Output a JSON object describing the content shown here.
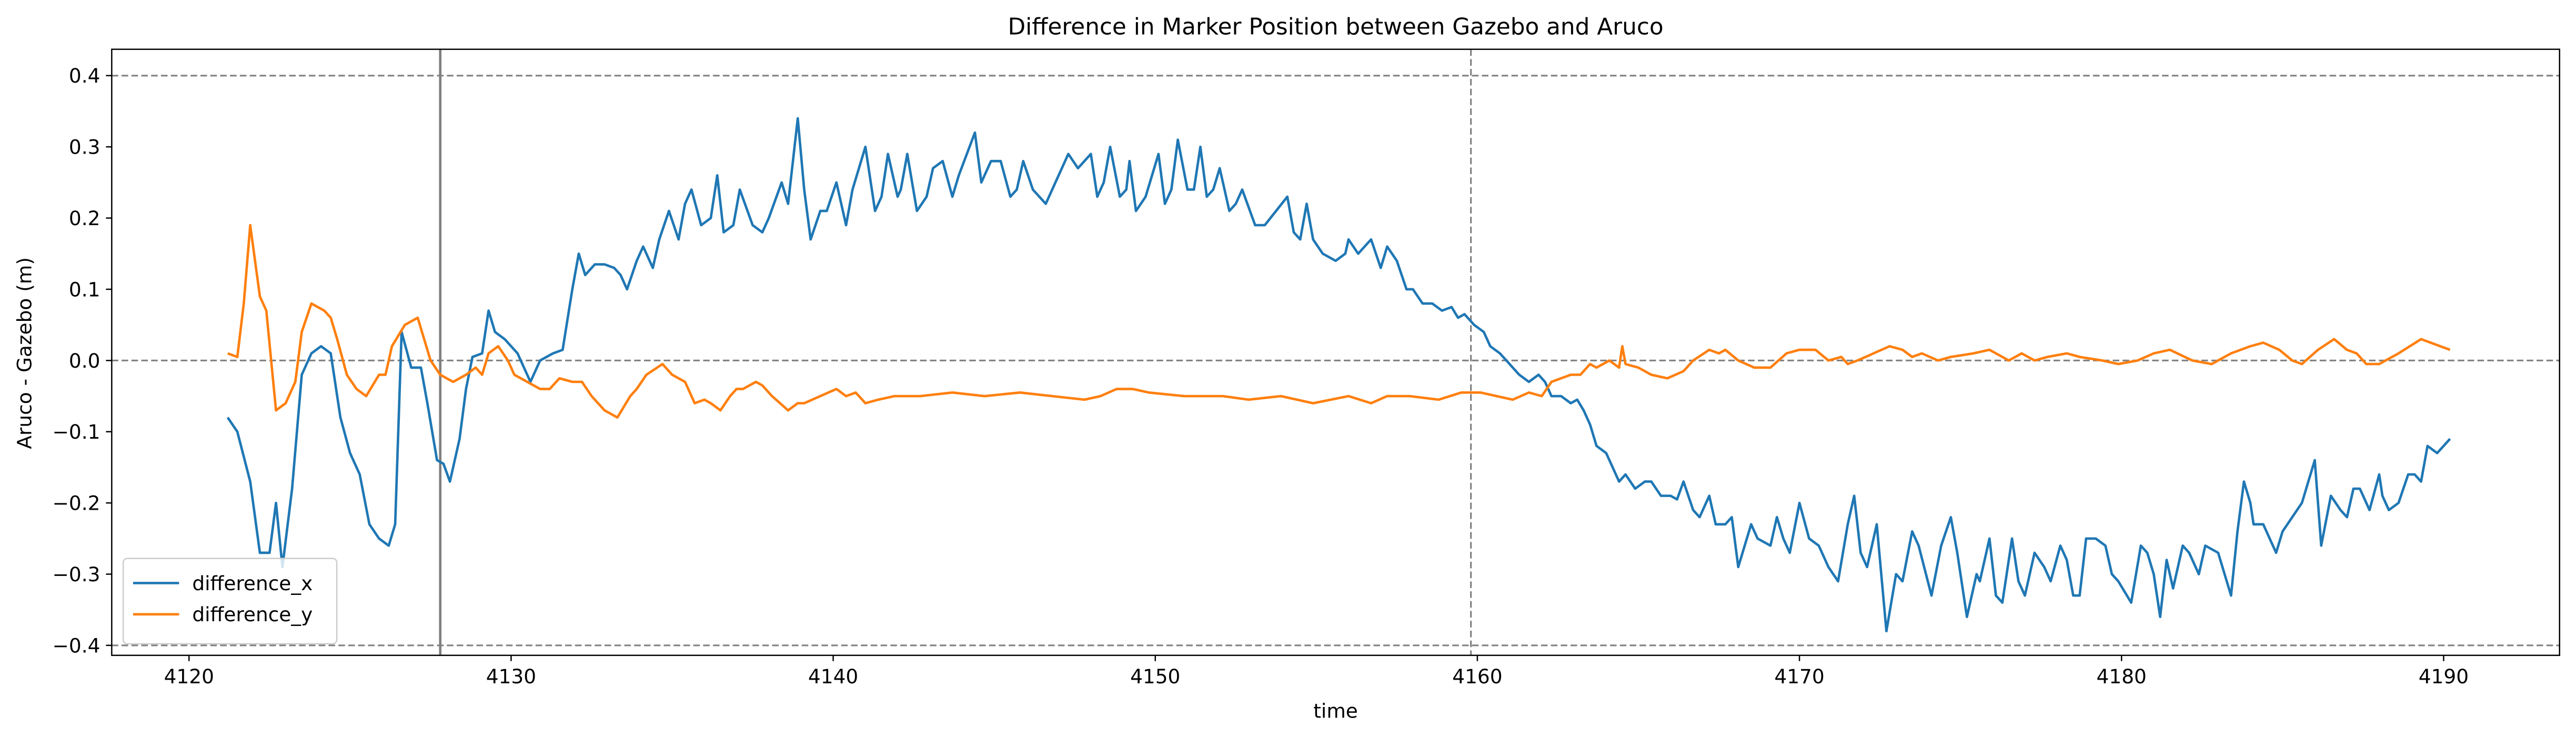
{
  "chart_data": {
    "type": "line",
    "title": "Difference in Marker Position between Gazebo and Aruco",
    "xlabel": "time",
    "ylabel": "Aruco - Gazebo (m)",
    "xlim": [
      4117.6,
      4193.6
    ],
    "ylim": [
      -0.414,
      0.437
    ],
    "xticks": [
      4120,
      4130,
      4140,
      4150,
      4160,
      4170,
      4180,
      4190
    ],
    "yticks": [
      {
        "value": -0.4,
        "label": "−0.4"
      },
      {
        "value": -0.3,
        "label": "−0.3"
      },
      {
        "value": -0.2,
        "label": "−0.2"
      },
      {
        "value": -0.1,
        "label": "−0.1"
      },
      {
        "value": 0,
        "label": "0.0"
      },
      0.1,
      0.2,
      0.3,
      0.4
    ],
    "hlines": [
      -0.4,
      0,
      0.4
    ],
    "vlines": [
      {
        "x": 4127.8,
        "style": "solid"
      },
      {
        "x": 4159.8,
        "style": "dashed"
      }
    ],
    "legend": "lower left",
    "series": [
      {
        "name": "difference_x",
        "color": "#1f77b4",
        "x": [
          4121.2,
          4121.5,
          4121.9,
          4122.2,
          4122.5,
          4122.7,
          4122.9,
          4123.2,
          4123.5,
          4123.8,
          4124.1,
          4124.4,
          4124.7,
          4125.0,
          4125.3,
          4125.6,
          4125.9,
          4126.2,
          4126.4,
          4126.6,
          4126.9,
          4127.2,
          4127.4,
          4127.7,
          4127.9,
          4128.1,
          4128.4,
          4128.6,
          4128.8,
          4129.1,
          4129.3,
          4129.5,
          4129.8,
          4130.2,
          4130.6,
          4130.9,
          4131.3,
          4131.6,
          4131.9,
          4132.1,
          4132.3,
          4132.6,
          4132.9,
          4133.2,
          4133.4,
          4133.6,
          4133.9,
          4134.1,
          4134.4,
          4134.6,
          4134.9,
          4135.2,
          4135.4,
          4135.6,
          4135.9,
          4136.2,
          4136.4,
          4136.6,
          4136.9,
          4137.1,
          4137.5,
          4137.8,
          4138.0,
          4138.4,
          4138.6,
          4138.9,
          4139.1,
          4139.3,
          4139.6,
          4139.8,
          4140.1,
          4140.4,
          4140.6,
          4141.0,
          4141.3,
          4141.5,
          4141.7,
          4142.0,
          4142.1,
          4142.3,
          4142.6,
          4142.9,
          4143.1,
          4143.4,
          4143.7,
          4143.9,
          4144.4,
          4144.6,
          4144.9,
          4145.2,
          4145.5,
          4145.7,
          4145.9,
          4146.2,
          4146.6,
          4147.3,
          4147.6,
          4148.0,
          4148.2,
          4148.4,
          4148.6,
          4148.9,
          4149.1,
          4149.2,
          4149.4,
          4149.7,
          4150.1,
          4150.3,
          4150.5,
          4150.7,
          4151.0,
          4151.2,
          4151.4,
          4151.6,
          4151.8,
          4152.0,
          4152.3,
          4152.5,
          4152.7,
          4153.1,
          4153.4,
          4154.1,
          4154.3,
          4154.5,
          4154.7,
          4154.9,
          4155.2,
          4155.6,
          4155.9,
          4156.0,
          4156.3,
          4156.5,
          4156.7,
          4157.0,
          4157.2,
          4157.5,
          4157.8,
          4158.0,
          4158.3,
          4158.6,
          4158.9,
          4159.2,
          4159.4,
          4159.6,
          4159.9,
          4160.2,
          4160.4,
          4160.7,
          4161.0,
          4161.3,
          4161.6,
          4161.9,
          4162.1,
          4162.3,
          4162.6,
          4162.9,
          4163.1,
          4163.3,
          4163.5,
          4163.7,
          4164.0,
          4164.4,
          4164.6,
          4164.9,
          4165.2,
          4165.4,
          4165.7,
          4166.0,
          4166.2,
          4166.4,
          4166.7,
          4166.9,
          4167.2,
          4167.4,
          4167.7,
          4167.9,
          4168.1,
          4168.5,
          4168.7,
          4169.1,
          4169.3,
          4169.5,
          4169.7,
          4170.0,
          4170.3,
          4170.6,
          4170.9,
          4171.2,
          4171.5,
          4171.7,
          4171.9,
          4172.1,
          4172.4,
          4172.7,
          4173.0,
          4173.2,
          4173.5,
          4173.7,
          4174.1,
          4174.4,
          4174.7,
          4174.9,
          4175.2,
          4175.5,
          4175.6,
          4175.9,
          4176.1,
          4176.3,
          4176.6,
          4176.8,
          4177.0,
          4177.3,
          4177.6,
          4177.8,
          4178.1,
          4178.3,
          4178.5,
          4178.7,
          4178.9,
          4179.2,
          4179.5,
          4179.7,
          4179.9,
          4180.3,
          4180.6,
          4180.8,
          4181.0,
          4181.2,
          4181.4,
          4181.6,
          4181.9,
          4182.1,
          4182.4,
          4182.6,
          4183.0,
          4183.4,
          4183.6,
          4183.8,
          4184.0,
          4184.1,
          4184.4,
          4184.6,
          4184.8,
          4185.0,
          4185.3,
          4185.6,
          4186.0,
          4186.2,
          4186.5,
          4186.8,
          4187.0,
          4187.2,
          4187.4,
          4187.7,
          4188.0,
          4188.1,
          4188.3,
          4188.6,
          4188.9,
          4189.1,
          4189.3,
          4189.5,
          4189.8,
          4190.2
        ],
        "values": [
          -0.08,
          -0.1,
          -0.17,
          -0.27,
          -0.27,
          -0.2,
          -0.29,
          -0.18,
          -0.02,
          0.01,
          0.02,
          0.01,
          -0.08,
          -0.13,
          -0.16,
          -0.23,
          -0.25,
          -0.26,
          -0.23,
          0.04,
          -0.01,
          -0.01,
          -0.06,
          -0.14,
          -0.145,
          -0.17,
          -0.11,
          -0.04,
          0.005,
          0.01,
          0.07,
          0.04,
          0.03,
          0.01,
          -0.03,
          0.0,
          0.01,
          0.015,
          0.1,
          0.15,
          0.12,
          0.135,
          0.135,
          0.13,
          0.12,
          0.1,
          0.14,
          0.16,
          0.13,
          0.17,
          0.21,
          0.17,
          0.22,
          0.24,
          0.19,
          0.2,
          0.26,
          0.18,
          0.19,
          0.24,
          0.19,
          0.18,
          0.2,
          0.25,
          0.22,
          0.34,
          0.24,
          0.17,
          0.21,
          0.21,
          0.25,
          0.19,
          0.24,
          0.3,
          0.21,
          0.23,
          0.29,
          0.23,
          0.24,
          0.29,
          0.21,
          0.23,
          0.27,
          0.28,
          0.23,
          0.26,
          0.32,
          0.25,
          0.28,
          0.28,
          0.23,
          0.24,
          0.28,
          0.24,
          0.22,
          0.29,
          0.27,
          0.29,
          0.23,
          0.25,
          0.3,
          0.23,
          0.24,
          0.28,
          0.21,
          0.23,
          0.29,
          0.22,
          0.24,
          0.31,
          0.24,
          0.24,
          0.3,
          0.23,
          0.24,
          0.27,
          0.21,
          0.22,
          0.24,
          0.19,
          0.19,
          0.23,
          0.18,
          0.17,
          0.22,
          0.17,
          0.15,
          0.14,
          0.15,
          0.17,
          0.15,
          0.16,
          0.17,
          0.13,
          0.16,
          0.14,
          0.1,
          0.1,
          0.08,
          0.08,
          0.07,
          0.075,
          0.06,
          0.065,
          0.05,
          0.04,
          0.02,
          0.01,
          -0.005,
          -0.02,
          -0.03,
          -0.02,
          -0.03,
          -0.05,
          -0.05,
          -0.06,
          -0.055,
          -0.07,
          -0.09,
          -0.12,
          -0.13,
          -0.17,
          -0.16,
          -0.18,
          -0.17,
          -0.17,
          -0.19,
          -0.19,
          -0.195,
          -0.17,
          -0.21,
          -0.22,
          -0.19,
          -0.23,
          -0.23,
          -0.22,
          -0.29,
          -0.23,
          -0.25,
          -0.26,
          -0.22,
          -0.25,
          -0.27,
          -0.2,
          -0.25,
          -0.26,
          -0.29,
          -0.31,
          -0.23,
          -0.19,
          -0.27,
          -0.29,
          -0.23,
          -0.38,
          -0.3,
          -0.31,
          -0.24,
          -0.26,
          -0.33,
          -0.26,
          -0.22,
          -0.27,
          -0.36,
          -0.3,
          -0.31,
          -0.25,
          -0.33,
          -0.34,
          -0.25,
          -0.31,
          -0.33,
          -0.27,
          -0.29,
          -0.31,
          -0.26,
          -0.28,
          -0.33,
          -0.33,
          -0.25,
          -0.25,
          -0.26,
          -0.3,
          -0.31,
          -0.34,
          -0.26,
          -0.27,
          -0.3,
          -0.36,
          -0.28,
          -0.32,
          -0.26,
          -0.27,
          -0.3,
          -0.26,
          -0.27,
          -0.33,
          -0.24,
          -0.17,
          -0.2,
          -0.23,
          -0.23,
          -0.25,
          -0.27,
          -0.24,
          -0.22,
          -0.2,
          -0.14,
          -0.26,
          -0.19,
          -0.21,
          -0.22,
          -0.18,
          -0.18,
          -0.21,
          -0.16,
          -0.19,
          -0.21,
          -0.2,
          -0.16,
          -0.16,
          -0.17,
          -0.12,
          -0.13,
          -0.11
        ]
      },
      {
        "name": "difference_y",
        "color": "#ff7f0e",
        "x": [
          4121.2,
          4121.5,
          4121.7,
          4121.9,
          4122.2,
          4122.4,
          4122.7,
          4123.0,
          4123.3,
          4123.5,
          4123.8,
          4124.2,
          4124.4,
          4124.6,
          4124.9,
          4125.2,
          4125.5,
          4125.9,
          4126.1,
          4126.3,
          4126.7,
          4127.1,
          4127.5,
          4127.8,
          4128.2,
          4128.6,
          4128.9,
          4129.1,
          4129.3,
          4129.6,
          4129.9,
          4130.1,
          4130.5,
          4130.9,
          4131.2,
          4131.5,
          4131.9,
          4132.2,
          4132.5,
          4132.9,
          4133.3,
          4133.7,
          4133.9,
          4134.2,
          4134.7,
          4135.0,
          4135.4,
          4135.7,
          4136.0,
          4136.2,
          4136.5,
          4136.8,
          4137.0,
          4137.2,
          4137.6,
          4137.8,
          4138.1,
          4138.6,
          4138.9,
          4139.1,
          4139.6,
          4140.1,
          4140.4,
          4140.7,
          4141.0,
          4141.4,
          4141.9,
          4142.7,
          4143.7,
          4144.7,
          4145.8,
          4146.8,
          4147.8,
          4148.3,
          4148.8,
          4149.3,
          4149.8,
          4150.9,
          4152.1,
          4152.9,
          4153.9,
          4154.9,
          4156.0,
          4156.7,
          4157.2,
          4157.9,
          4158.8,
          4159.5,
          4160.1,
          4160.6,
          4161.1,
          4161.6,
          4162.0,
          4162.3,
          4162.9,
          4163.2,
          4163.5,
          4163.7,
          4164.1,
          4164.4,
          4164.5,
          4164.6,
          4165.0,
          4165.4,
          4165.9,
          4166.4,
          4166.7,
          4167.2,
          4167.5,
          4167.7,
          4168.1,
          4168.6,
          4169.1,
          4169.6,
          4170.0,
          4170.5,
          4170.9,
          4171.3,
          4171.5,
          4171.8,
          4172.3,
          4172.8,
          4173.2,
          4173.5,
          4173.8,
          4174.3,
          4174.7,
          4175.4,
          4175.9,
          4176.5,
          4176.9,
          4177.3,
          4177.7,
          4178.3,
          4178.7,
          4179.4,
          4179.9,
          4180.5,
          4181.0,
          4181.5,
          4182.2,
          4182.8,
          4183.4,
          4184.0,
          4184.4,
          4184.9,
          4185.3,
          4185.6,
          4186.1,
          4186.6,
          4187.0,
          4187.3,
          4187.6,
          4188.0,
          4188.6,
          4189.3,
          4189.6,
          4190.2
        ],
        "values": [
          0.01,
          0.005,
          0.08,
          0.19,
          0.09,
          0.07,
          -0.07,
          -0.06,
          -0.03,
          0.04,
          0.08,
          0.07,
          0.06,
          0.03,
          -0.02,
          -0.04,
          -0.05,
          -0.02,
          -0.02,
          0.02,
          0.05,
          0.06,
          0.0,
          -0.02,
          -0.03,
          -0.02,
          -0.01,
          -0.02,
          0.01,
          0.02,
          0.0,
          -0.02,
          -0.03,
          -0.04,
          -0.04,
          -0.025,
          -0.03,
          -0.03,
          -0.05,
          -0.07,
          -0.08,
          -0.05,
          -0.04,
          -0.02,
          -0.005,
          -0.02,
          -0.03,
          -0.06,
          -0.055,
          -0.06,
          -0.07,
          -0.05,
          -0.04,
          -0.04,
          -0.03,
          -0.035,
          -0.05,
          -0.07,
          -0.06,
          -0.06,
          -0.05,
          -0.04,
          -0.05,
          -0.045,
          -0.06,
          -0.055,
          -0.05,
          -0.05,
          -0.045,
          -0.05,
          -0.045,
          -0.05,
          -0.055,
          -0.05,
          -0.04,
          -0.04,
          -0.045,
          -0.05,
          -0.05,
          -0.055,
          -0.05,
          -0.06,
          -0.05,
          -0.06,
          -0.05,
          -0.05,
          -0.055,
          -0.045,
          -0.045,
          -0.05,
          -0.055,
          -0.045,
          -0.05,
          -0.03,
          -0.02,
          -0.02,
          -0.005,
          -0.01,
          0.0,
          -0.01,
          0.02,
          -0.005,
          -0.01,
          -0.02,
          -0.025,
          -0.015,
          0.0,
          0.015,
          0.01,
          0.015,
          0.0,
          -0.01,
          -0.01,
          0.01,
          0.015,
          0.015,
          0.0,
          0.005,
          -0.005,
          0.0,
          0.01,
          0.02,
          0.015,
          0.005,
          0.01,
          0.0,
          0.005,
          0.01,
          0.015,
          0.0,
          0.01,
          0.0,
          0.005,
          0.01,
          0.005,
          0.0,
          -0.005,
          0.0,
          0.01,
          0.015,
          0.0,
          -0.005,
          0.01,
          0.02,
          0.025,
          0.015,
          0.0,
          -0.005,
          0.015,
          0.03,
          0.015,
          0.01,
          -0.005,
          -0.005,
          0.01,
          0.03,
          0.025,
          0.015
        ]
      }
    ]
  }
}
